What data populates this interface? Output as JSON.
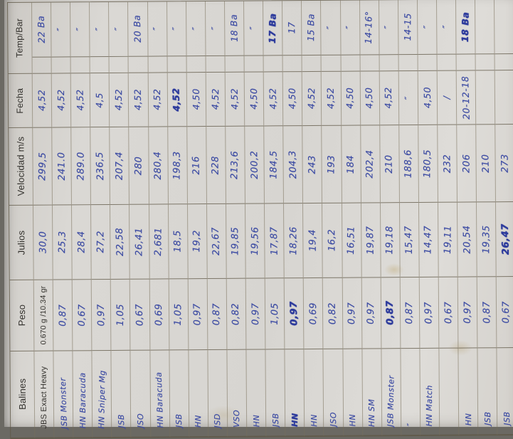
{
  "photo": {
    "backdrop_color": "#6b6963",
    "paper_color": "#d8d5d0",
    "ink_color": "#3c4ba3",
    "print_color": "#32302c",
    "grid_line_color": "#8a8272"
  },
  "table": {
    "fields": [
      {
        "key": "temp",
        "label": "Temp/Bar"
      },
      {
        "key": "bar",
        "label": ""
      },
      {
        "key": "fecha",
        "label": "Fecha"
      },
      {
        "key": "velocidad",
        "label": "Velocidad  m/s"
      },
      {
        "key": "julios",
        "label": "Julios"
      },
      {
        "key": "peso",
        "label": "Peso"
      },
      {
        "key": "balines",
        "label": "Balines"
      }
    ],
    "entries": [
      {
        "balines": "JBS Exact Heavy",
        "peso": "0.670 g /10.34 gr",
        "julios": "30,0",
        "velocidad": "299,5",
        "fecha": "4,52",
        "temp": "22 Ba",
        "printed": [
          "balines",
          "peso"
        ]
      },
      {
        "balines": "JSB Monster",
        "peso": "0,87",
        "julios": "25,3",
        "velocidad": "241.0",
        "fecha": "4,52",
        "temp": "″"
      },
      {
        "balines": "HN Baracuda",
        "peso": "0,67",
        "julios": "28,4",
        "velocidad": "289.0",
        "fecha": "4,52",
        "temp": "″"
      },
      {
        "balines": "HN Sniper Mg",
        "peso": "0,97",
        "julios": "27,2",
        "velocidad": "236,5",
        "fecha": "4,5",
        "temp": "″"
      },
      {
        "balines": "JSB",
        "peso": "1,05",
        "julios": "22,58",
        "velocidad": "207,4",
        "fecha": "4,52",
        "temp": "″"
      },
      {
        "balines": "JSO",
        "peso": "0,67",
        "julios": "26,41",
        "velocidad": "280",
        "fecha": "4,52",
        "temp": "20 Ba"
      },
      {
        "balines": "HN Baracuda",
        "peso": "0,69",
        "julios": "2,681",
        "velocidad": "280,4",
        "fecha": "4,52",
        "temp": "″"
      },
      {
        "balines": "JSB",
        "peso": "1,05",
        "julios": "18,5",
        "velocidad": "198,3",
        "fecha": "4,52",
        "temp": "″",
        "bold": [
          "fecha"
        ]
      },
      {
        "balines": "HN",
        "peso": "0,97",
        "julios": "19,2",
        "velocidad": "216",
        "fecha": "4,50",
        "temp": "″"
      },
      {
        "balines": "JSD",
        "peso": "0,87",
        "julios": "22,67",
        "velocidad": "228",
        "fecha": "4,52",
        "temp": "″"
      },
      {
        "balines": "VSO",
        "peso": "0,82",
        "julios": "19,85",
        "velocidad": "213,6",
        "fecha": "4,52",
        "temp": "18 Ba"
      },
      {
        "balines": "HN",
        "peso": "0,97",
        "julios": "19,56",
        "velocidad": "200,2",
        "fecha": "4,50",
        "temp": "″"
      },
      {
        "balines": "JSB",
        "peso": "1,05",
        "julios": "17,87",
        "velocidad": "184,5",
        "fecha": "4,52",
        "temp": "17 Ba",
        "bold": [
          "temp"
        ]
      },
      {
        "balines": "HN",
        "peso": "0,97",
        "julios": "18,26",
        "velocidad": "204,3",
        "fecha": "4,50",
        "temp": "17",
        "bold": [
          "balines",
          "peso"
        ]
      },
      {
        "balines": "HN",
        "peso": "0,69",
        "julios": "19,4",
        "velocidad": "243",
        "fecha": "4,52",
        "temp": "15 Ba"
      },
      {
        "balines": "JSO",
        "peso": "0,82",
        "julios": "16,2",
        "velocidad": "193",
        "fecha": "4,52",
        "temp": "″"
      },
      {
        "balines": "HN",
        "peso": "0,97",
        "julios": "16,51",
        "velocidad": "184",
        "fecha": "4,50",
        "temp": "″"
      },
      {
        "balines": "HN SM",
        "peso": "0,97",
        "julios": "19,87",
        "velocidad": "202,4",
        "fecha": "4,50",
        "temp": "14-16°"
      },
      {
        "balines": "JSB Monster",
        "peso": "0,87",
        "julios": "19,18",
        "velocidad": "210",
        "fecha": "4,52",
        "temp": "″",
        "bold": [
          "peso"
        ]
      },
      {
        "balines": "″",
        "peso": "0,87",
        "julios": "15,47",
        "velocidad": "188,6",
        "fecha": "″",
        "temp": "14-15"
      },
      {
        "balines": "HN Match",
        "peso": "0,97",
        "julios": "14,47",
        "velocidad": "180,5",
        "fecha": "4,50",
        "temp": "″"
      },
      {
        "balines": "",
        "peso": "0,67",
        "julios": "19,11",
        "velocidad": "232",
        "fecha": "/",
        "temp": "″"
      },
      {
        "balines": "HN",
        "peso": "0,97",
        "julios": "20,54",
        "velocidad": "206",
        "fecha": "20-12-18",
        "temp": "18 Ba",
        "bold": [
          "temp"
        ]
      },
      {
        "balines": "JSB",
        "peso": "0,87",
        "julios": "19,35",
        "velocidad": "210",
        "fecha": "",
        "temp": ""
      },
      {
        "balines": "JSB",
        "peso": "0,67",
        "julios": "26,47",
        "velocidad": "273",
        "fecha": "",
        "temp": "",
        "bold": [
          "julios"
        ]
      }
    ]
  }
}
